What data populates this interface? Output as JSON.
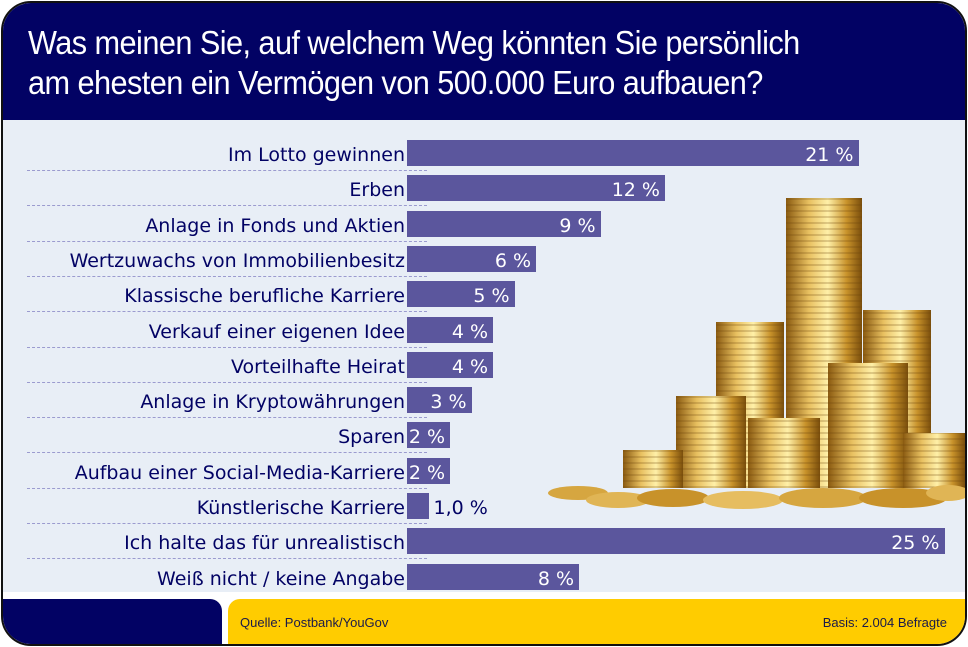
{
  "title_lines": [
    "Was meinen Sie, auf welchem Weg könnten Sie persönlich",
    "am ehesten ein Vermögen von 500.000 Euro aufbauen?"
  ],
  "colors": {
    "header_bg": "#020264",
    "plot_bg": "#e8eef6",
    "bar": "#5b569d",
    "footer_left": "#020264",
    "footer_right": "#ffcc00",
    "label_text": "#020264"
  },
  "image": {
    "icon": "gold-coin-stacks"
  },
  "footer": {
    "source": "Quelle: Postbank/YouGov",
    "basis": "Basis: 2.004 Befragte"
  },
  "chart_data": {
    "type": "bar",
    "orientation": "horizontal",
    "title": "Was meinen Sie, auf welchem Weg könnten Sie persönlich am ehesten ein Vermögen von 500.000 Euro aufbauen?",
    "xlabel": "",
    "ylabel": "",
    "unit": "%",
    "xlim": [
      0,
      25
    ],
    "grid": false,
    "legend": "none",
    "categories": [
      "Im Lotto gewinnen",
      "Erben",
      "Anlage in Fonds und Aktien",
      "Wertzuwachs von Immobilienbesitz",
      "Klassische berufliche Karriere",
      "Verkauf einer eigenen Idee",
      "Vorteilhafte Heirat",
      "Anlage in Kryptowährungen",
      "Sparen",
      "Aufbau einer Social-Media-Karriere",
      "Künstlerische Karriere",
      "Ich halte das für unrealistisch",
      "Weiß nicht / keine Angabe"
    ],
    "values": [
      21,
      12,
      9,
      6,
      5,
      4,
      4,
      3,
      2,
      2,
      1.0,
      25,
      8
    ],
    "value_labels": [
      "21 %",
      "12 %",
      "9 %",
      "6 %",
      "5 %",
      "4 %",
      "4 %",
      "3 %",
      "2 %",
      "2 %",
      "1,0 %",
      "25 %",
      "8 %"
    ]
  }
}
